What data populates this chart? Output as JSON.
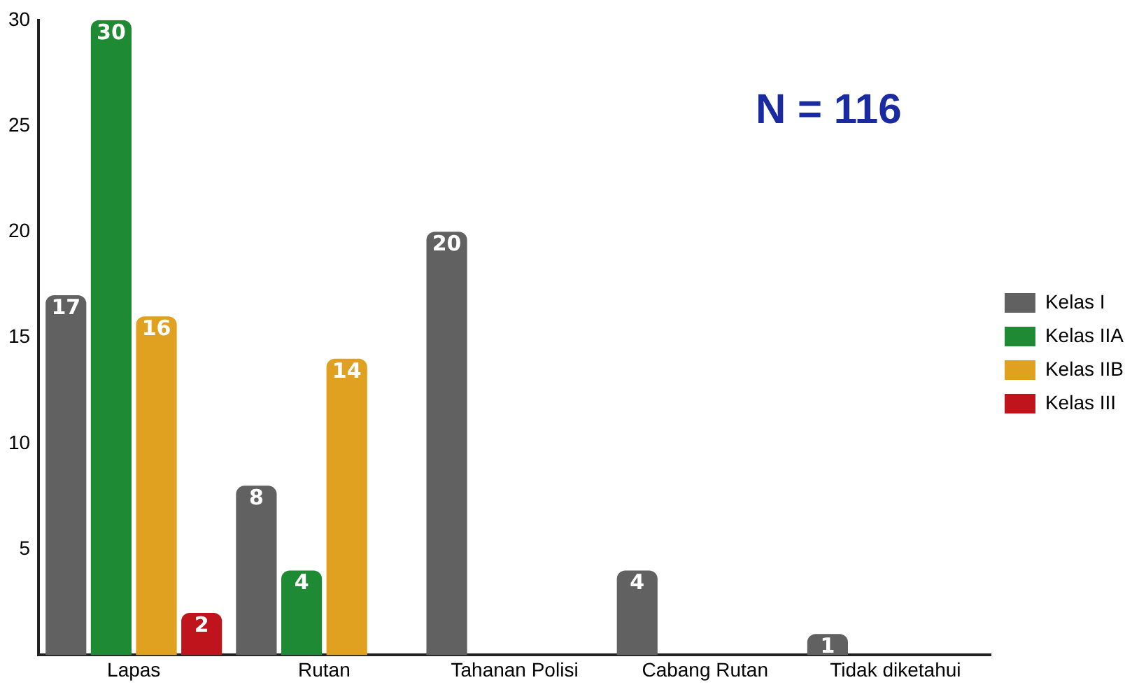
{
  "chart_data": {
    "type": "bar",
    "categories": [
      "Lapas",
      "Rutan",
      "Tahanan Polisi",
      "Cabang Rutan",
      "Tidak diketahui"
    ],
    "series": [
      {
        "name": "Kelas I",
        "color": "#616161",
        "values": [
          17,
          8,
          20,
          4,
          1
        ]
      },
      {
        "name": "Kelas IIA",
        "color": "#1e8a34",
        "values": [
          30,
          4,
          null,
          null,
          null
        ]
      },
      {
        "name": "Kelas IIB",
        "color": "#e0a020",
        "values": [
          16,
          14,
          null,
          null,
          null
        ]
      },
      {
        "name": "Kelas III",
        "color": "#c0141c",
        "values": [
          2,
          null,
          null,
          null,
          null
        ]
      }
    ],
    "ylim": [
      0,
      30
    ],
    "yticks": [
      5,
      10,
      15,
      20,
      25,
      30
    ],
    "grid": false,
    "legend": "right",
    "data_labels": true,
    "annotations": [
      "N = 116"
    ]
  }
}
